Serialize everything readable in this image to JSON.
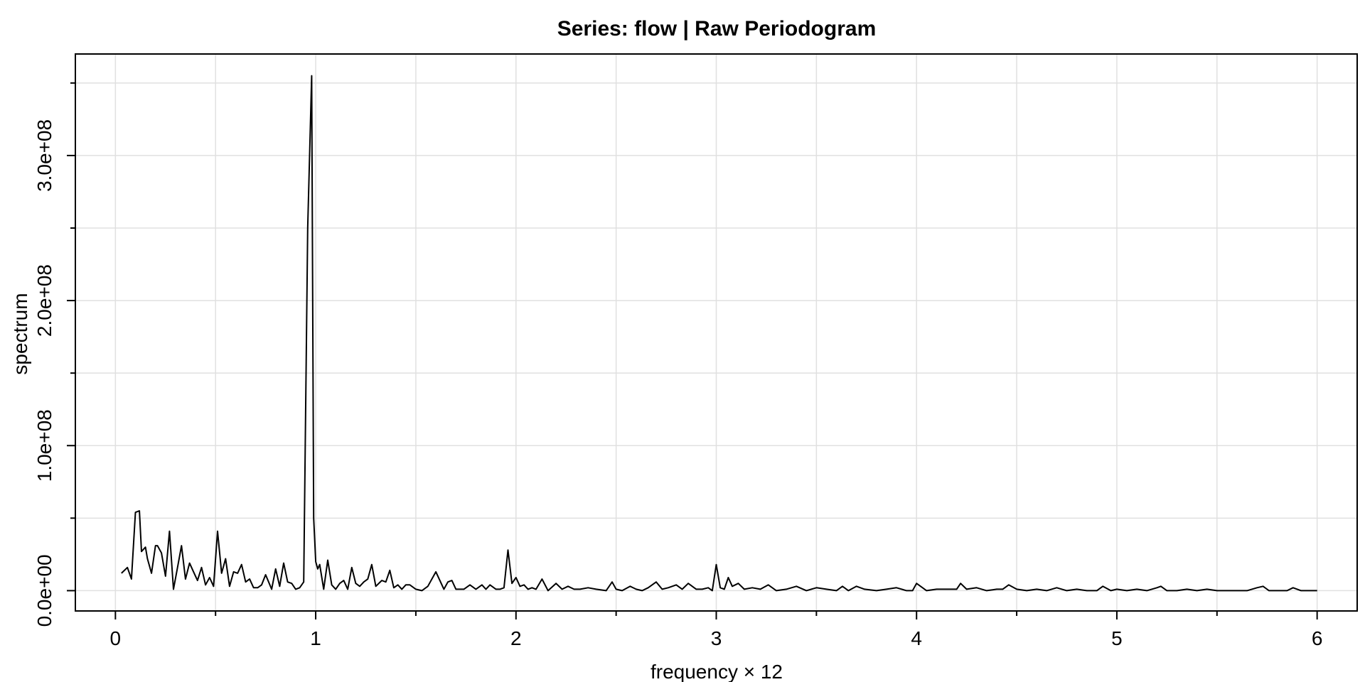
{
  "chart_data": {
    "type": "line",
    "title": "Series: flow  |  Raw Periodogram",
    "xlabel": "frequency × 12",
    "ylabel": "spectrum",
    "xlim": [
      -0.2,
      6.2
    ],
    "ylim": [
      -14000000,
      370000000
    ],
    "x_ticks": [
      0,
      1,
      2,
      3,
      4,
      5,
      6
    ],
    "x_tick_labels": [
      "0",
      "1",
      "2",
      "3",
      "4",
      "5",
      "6"
    ],
    "y_ticks": [
      0,
      100000000,
      200000000,
      300000000
    ],
    "y_tick_labels": [
      "0.0e+00",
      "1.0e+08",
      "2.0e+08",
      "3.0e+08"
    ],
    "grid": true,
    "line_color": "#000000",
    "grid_color": "#e0e0e0",
    "series": [
      {
        "x": [
          0.03,
          0.06,
          0.08,
          0.1,
          0.12,
          0.13,
          0.15,
          0.16,
          0.18,
          0.2,
          0.21,
          0.23,
          0.25,
          0.27,
          0.29,
          0.31,
          0.33,
          0.35,
          0.37,
          0.39,
          0.41,
          0.43,
          0.45,
          0.47,
          0.49,
          0.51,
          0.53,
          0.55,
          0.57,
          0.59,
          0.61,
          0.63,
          0.65,
          0.67,
          0.69,
          0.71,
          0.73,
          0.75,
          0.78,
          0.8,
          0.82,
          0.84,
          0.86,
          0.88,
          0.9,
          0.92,
          0.94,
          0.96,
          0.98,
          0.99,
          1.0,
          1.01,
          1.02,
          1.04,
          1.06,
          1.08,
          1.1,
          1.12,
          1.14,
          1.16,
          1.18,
          1.2,
          1.22,
          1.24,
          1.26,
          1.28,
          1.3,
          1.33,
          1.35,
          1.37,
          1.39,
          1.41,
          1.43,
          1.45,
          1.47,
          1.5,
          1.53,
          1.56,
          1.6,
          1.62,
          1.64,
          1.66,
          1.68,
          1.7,
          1.72,
          1.74,
          1.77,
          1.8,
          1.83,
          1.85,
          1.87,
          1.9,
          1.92,
          1.94,
          1.96,
          1.98,
          2.0,
          2.02,
          2.04,
          2.06,
          2.08,
          2.1,
          2.13,
          2.16,
          2.2,
          2.23,
          2.26,
          2.29,
          2.32,
          2.36,
          2.4,
          2.45,
          2.48,
          2.5,
          2.53,
          2.57,
          2.6,
          2.63,
          2.66,
          2.7,
          2.73,
          2.76,
          2.8,
          2.83,
          2.86,
          2.9,
          2.93,
          2.96,
          2.98,
          3.0,
          3.02,
          3.04,
          3.06,
          3.08,
          3.11,
          3.14,
          3.18,
          3.22,
          3.26,
          3.3,
          3.35,
          3.4,
          3.45,
          3.5,
          3.55,
          3.6,
          3.63,
          3.66,
          3.7,
          3.74,
          3.8,
          3.85,
          3.9,
          3.95,
          3.98,
          4.0,
          4.02,
          4.05,
          4.1,
          4.15,
          4.2,
          4.22,
          4.25,
          4.3,
          4.35,
          4.4,
          4.43,
          4.46,
          4.5,
          4.55,
          4.6,
          4.65,
          4.7,
          4.75,
          4.8,
          4.85,
          4.9,
          4.93,
          4.97,
          5.0,
          5.05,
          5.1,
          5.15,
          5.2,
          5.22,
          5.25,
          5.3,
          5.35,
          5.4,
          5.45,
          5.5,
          5.55,
          5.6,
          5.65,
          5.7,
          5.73,
          5.76,
          5.8,
          5.85,
          5.88,
          5.92,
          5.96,
          6.0
        ],
        "y": [
          12000000,
          16000000,
          8000000,
          54000000,
          55000000,
          27000000,
          30000000,
          22000000,
          12000000,
          31000000,
          31000000,
          26000000,
          10000000,
          41000000,
          1000000,
          16000000,
          31000000,
          8000000,
          19000000,
          13000000,
          7000000,
          16000000,
          4000000,
          9000000,
          3000000,
          41000000,
          12000000,
          22000000,
          3000000,
          13000000,
          12000000,
          18000000,
          6000000,
          8000000,
          2000000,
          2000000,
          4000000,
          11000000,
          1000000,
          15000000,
          3000000,
          19000000,
          6000000,
          5000000,
          1000000,
          2000000,
          6000000,
          250000000,
          355000000,
          50000000,
          20000000,
          15000000,
          18000000,
          1000000,
          21000000,
          4000000,
          1000000,
          5000000,
          7000000,
          1000000,
          16000000,
          5000000,
          3000000,
          6000000,
          8000000,
          18000000,
          3000000,
          7000000,
          6000000,
          14000000,
          2000000,
          4000000,
          1000000,
          4000000,
          4000000,
          1000000,
          0,
          3000000,
          13000000,
          7000000,
          1000000,
          6000000,
          7000000,
          1000000,
          1000000,
          1000000,
          4000000,
          1000000,
          4000000,
          1000000,
          4000000,
          1000000,
          1000000,
          2000000,
          28000000,
          5000000,
          9000000,
          3000000,
          4000000,
          1000000,
          2000000,
          1000000,
          8000000,
          0,
          5000000,
          1000000,
          3000000,
          1000000,
          1000000,
          2000000,
          1000000,
          0,
          6000000,
          1000000,
          0,
          3000000,
          1000000,
          0,
          2000000,
          6000000,
          1000000,
          2000000,
          4000000,
          1000000,
          5000000,
          1000000,
          1000000,
          2000000,
          0,
          18000000,
          2000000,
          1000000,
          9000000,
          3000000,
          5000000,
          1000000,
          2000000,
          1000000,
          4000000,
          0,
          1000000,
          3000000,
          0,
          2000000,
          1000000,
          0,
          3000000,
          0,
          3000000,
          1000000,
          0,
          1000000,
          2000000,
          0,
          0,
          5000000,
          3000000,
          0,
          1000000,
          1000000,
          1000000,
          5000000,
          1000000,
          2000000,
          0,
          1000000,
          1000000,
          4000000,
          1000000,
          0,
          1000000,
          0,
          2000000,
          0,
          1000000,
          0,
          0,
          3000000,
          0,
          1000000,
          0,
          1000000,
          0,
          2000000,
          3000000,
          0,
          0,
          1000000,
          0,
          1000000,
          0,
          0,
          0,
          0,
          2000000,
          3000000,
          0,
          0,
          0,
          2000000,
          0,
          0,
          0
        ]
      }
    ]
  }
}
